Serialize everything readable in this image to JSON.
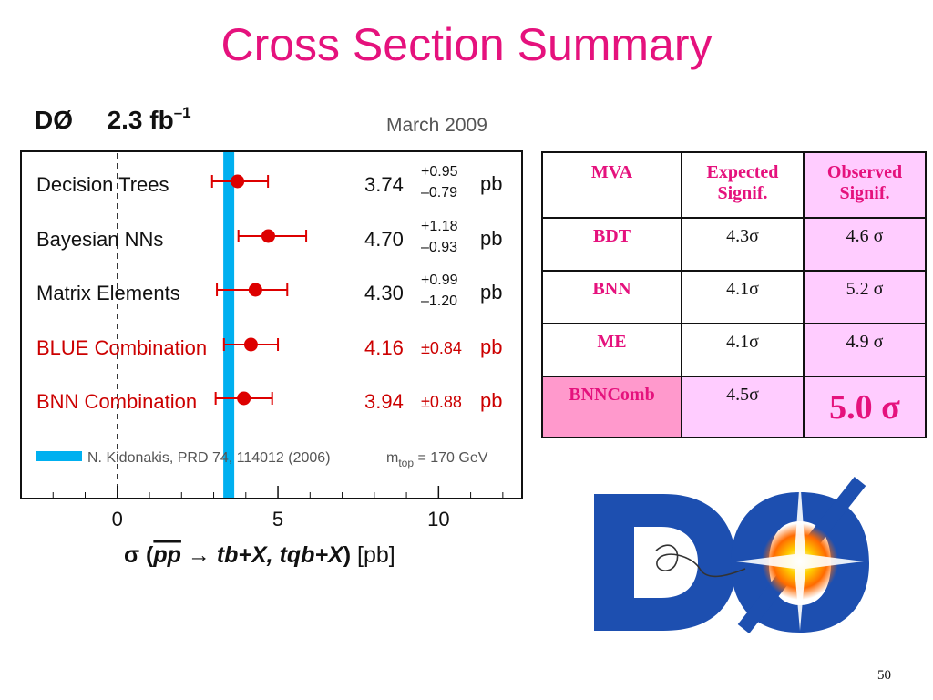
{
  "slide": {
    "title": "Cross Section Summary",
    "page_number": "50"
  },
  "plot": {
    "experiment": "DØ",
    "luminosity": "2.3 fb",
    "luminosity_exponent": "–1",
    "date": "March 2009",
    "theory_label": "N. Kidonakis, PRD 74, 114012 (2006)",
    "mtop_prefix": "m",
    "mtop_sub": "top",
    "mtop_suffix": " = 170 GeV",
    "xlabel_parts": [
      "σ (",
      "pp",
      " → tb+X, tqb+X",
      ")",
      "   [pb]"
    ]
  },
  "chart_data": {
    "type": "scatter",
    "title": "",
    "xlabel": "σ (pp̄ → tb+X, tqb+X) [pb]",
    "ylabel": "",
    "xlim": [
      -3,
      12.6
    ],
    "xticks": [
      0,
      5,
      10
    ],
    "unit": "pb",
    "reference_line": {
      "x": 0
    },
    "theory_band": {
      "center": 3.47,
      "low": 3.3,
      "high": 3.64,
      "color": "#00b0f0"
    },
    "series": [
      {
        "name": "Decision Trees",
        "value": 3.74,
        "err_plus": 0.95,
        "err_minus": 0.79,
        "plus_text": "+0.95",
        "minus_text": "–0.79",
        "unit": "pb",
        "color": "#dd0000",
        "label_color": "#111111"
      },
      {
        "name": "Bayesian NNs",
        "value": 4.7,
        "err_plus": 1.18,
        "err_minus": 0.93,
        "plus_text": "+1.18",
        "minus_text": "–0.93",
        "unit": "pb",
        "color": "#dd0000",
        "label_color": "#111111"
      },
      {
        "name": "Matrix Elements",
        "value": 4.3,
        "err_plus": 0.99,
        "err_minus": 1.2,
        "plus_text": "+0.99",
        "minus_text": "–1.20",
        "unit": "pb",
        "color": "#dd0000",
        "label_color": "#111111"
      },
      {
        "name": "BLUE Combination",
        "value": 4.16,
        "err_plus": 0.84,
        "err_minus": 0.84,
        "sym_text": "±0.84",
        "unit": "pb",
        "color": "#dd0000",
        "label_color": "#cc0000"
      },
      {
        "name": "BNN Combination",
        "value": 3.94,
        "err_plus": 0.88,
        "err_minus": 0.88,
        "sym_text": "±0.88",
        "unit": "pb",
        "color": "#dd0000",
        "label_color": "#cc0000"
      }
    ]
  },
  "table": {
    "headers": [
      "MVA",
      "Expected Signif.",
      "Observed Signif."
    ],
    "header_lines": [
      [
        "MVA"
      ],
      [
        "Expected",
        "Signif."
      ],
      [
        "Observed",
        "Signif."
      ]
    ],
    "rows": [
      {
        "mva": "BDT",
        "expected": "4.3σ",
        "observed": "4.6 σ"
      },
      {
        "mva": "BNN",
        "expected": "4.1σ",
        "observed": "5.2 σ"
      },
      {
        "mva": "ME",
        "expected": "4.1σ",
        "observed": "4.9 σ"
      },
      {
        "mva": "BNNComb",
        "expected": "4.5σ",
        "observed": "5.0 σ"
      }
    ]
  },
  "logo": {
    "text": "DØ",
    "colors": {
      "blue": "#1d4fb0",
      "orange": "#ff8c00"
    }
  },
  "colors": {
    "title": "#e5127d",
    "table_pink": "#ffccff",
    "table_dark_pink": "#ff99cc",
    "marker": "#dd0000",
    "band": "#00b0f0"
  }
}
